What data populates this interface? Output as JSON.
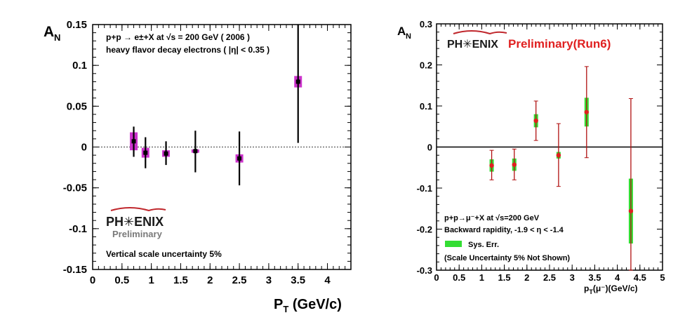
{
  "chart_data": [
    {
      "type": "scatter",
      "title": "",
      "xlabel": "P",
      "xlabel_sub": "T",
      "xlabel_unit": " (GeV/c)",
      "ylabel": "A",
      "ylabel_sub": "N",
      "xlim": [
        0,
        4.4
      ],
      "ylim": [
        -0.15,
        0.15
      ],
      "x_ticks": [
        "0",
        "0.5",
        "1",
        "1.5",
        "2",
        "2.5",
        "3",
        "3.5",
        "4"
      ],
      "y_ticks": [
        "-0.15",
        "-0.1",
        "-0.05",
        "0",
        "0.05",
        "0.1",
        "0.15"
      ],
      "zero_line": "dashed",
      "marker_color": "#000000",
      "sys_color": "#cc33cc",
      "series": [
        {
          "points": [
            {
              "x": 0.7,
              "y": 0.007,
              "stat_lo": -0.012,
              "stat_hi": 0.025,
              "sys_lo": -0.004,
              "sys_hi": 0.018
            },
            {
              "x": 0.9,
              "y": -0.007,
              "stat_lo": -0.026,
              "stat_hi": 0.012,
              "sys_lo": -0.013,
              "sys_hi": -0.001
            },
            {
              "x": 1.25,
              "y": -0.008,
              "stat_lo": -0.022,
              "stat_hi": 0.007,
              "sys_lo": -0.012,
              "sys_hi": -0.004
            },
            {
              "x": 1.75,
              "y": -0.005,
              "stat_lo": -0.031,
              "stat_hi": 0.02,
              "sys_lo": -0.007,
              "sys_hi": -0.003
            },
            {
              "x": 2.5,
              "y": -0.014,
              "stat_lo": -0.047,
              "stat_hi": 0.019,
              "sys_lo": -0.019,
              "sys_hi": -0.009
            },
            {
              "x": 3.5,
              "y": 0.08,
              "stat_lo": 0.005,
              "stat_hi": 0.15,
              "sys_lo": 0.073,
              "sys_hi": 0.087
            }
          ]
        }
      ],
      "annotations": {
        "line1": "p+p → e±+X at √s = 200 GeV ( 2006 )",
        "line2": "heavy flavor decay electrons ( |η| < 0.35 )",
        "logo": "PH✳ENIX",
        "preliminary": "Preliminary",
        "scale_note": "Vertical scale uncertainty 5%"
      }
    },
    {
      "type": "scatter",
      "title": "",
      "xlabel": "p",
      "xlabel_sub": "T",
      "xlabel_unit": "(μ⁻)(GeV/c)",
      "ylabel": "A",
      "ylabel_sub": "N",
      "xlim": [
        0,
        5
      ],
      "ylim": [
        -0.3,
        0.3
      ],
      "x_ticks": [
        "0",
        "0.5",
        "1",
        "1.5",
        "2",
        "2.5",
        "3",
        "3.5",
        "4",
        "4.5",
        "5"
      ],
      "y_ticks": [
        "-0.3",
        "-0.2",
        "-0.1",
        "0",
        "0.1",
        "0.2",
        "0.3"
      ],
      "zero_line": "solid",
      "marker_color": "#e02020",
      "sys_color": "#33dd33",
      "series": [
        {
          "points": [
            {
              "x": 1.22,
              "y": -0.045,
              "stat_lo": -0.08,
              "stat_hi": -0.008,
              "sys_lo": -0.06,
              "sys_hi": -0.03
            },
            {
              "x": 1.72,
              "y": -0.043,
              "stat_lo": -0.08,
              "stat_hi": -0.005,
              "sys_lo": -0.058,
              "sys_hi": -0.028
            },
            {
              "x": 2.2,
              "y": 0.064,
              "stat_lo": 0.016,
              "stat_hi": 0.112,
              "sys_lo": 0.048,
              "sys_hi": 0.08
            },
            {
              "x": 2.7,
              "y": -0.02,
              "stat_lo": -0.096,
              "stat_hi": 0.057,
              "sys_lo": -0.028,
              "sys_hi": -0.012
            },
            {
              "x": 3.32,
              "y": 0.085,
              "stat_lo": -0.026,
              "stat_hi": 0.196,
              "sys_lo": 0.05,
              "sys_hi": 0.12
            },
            {
              "x": 4.3,
              "y": -0.156,
              "stat_lo": -0.3,
              "stat_hi": 0.118,
              "sys_lo": -0.235,
              "sys_hi": -0.077
            }
          ]
        }
      ],
      "annotations": {
        "logo": "PH✳ENIX",
        "preliminary": "Preliminary(Run6)",
        "line1": "p+p→μ⁻+X at √s=200 GeV",
        "line2": "Backward rapidity, -1.9 < η < -1.4",
        "legend_sys": "Sys. Err.",
        "scale_note": "(Scale Uncertainty 5%  Not Shown)"
      }
    }
  ]
}
